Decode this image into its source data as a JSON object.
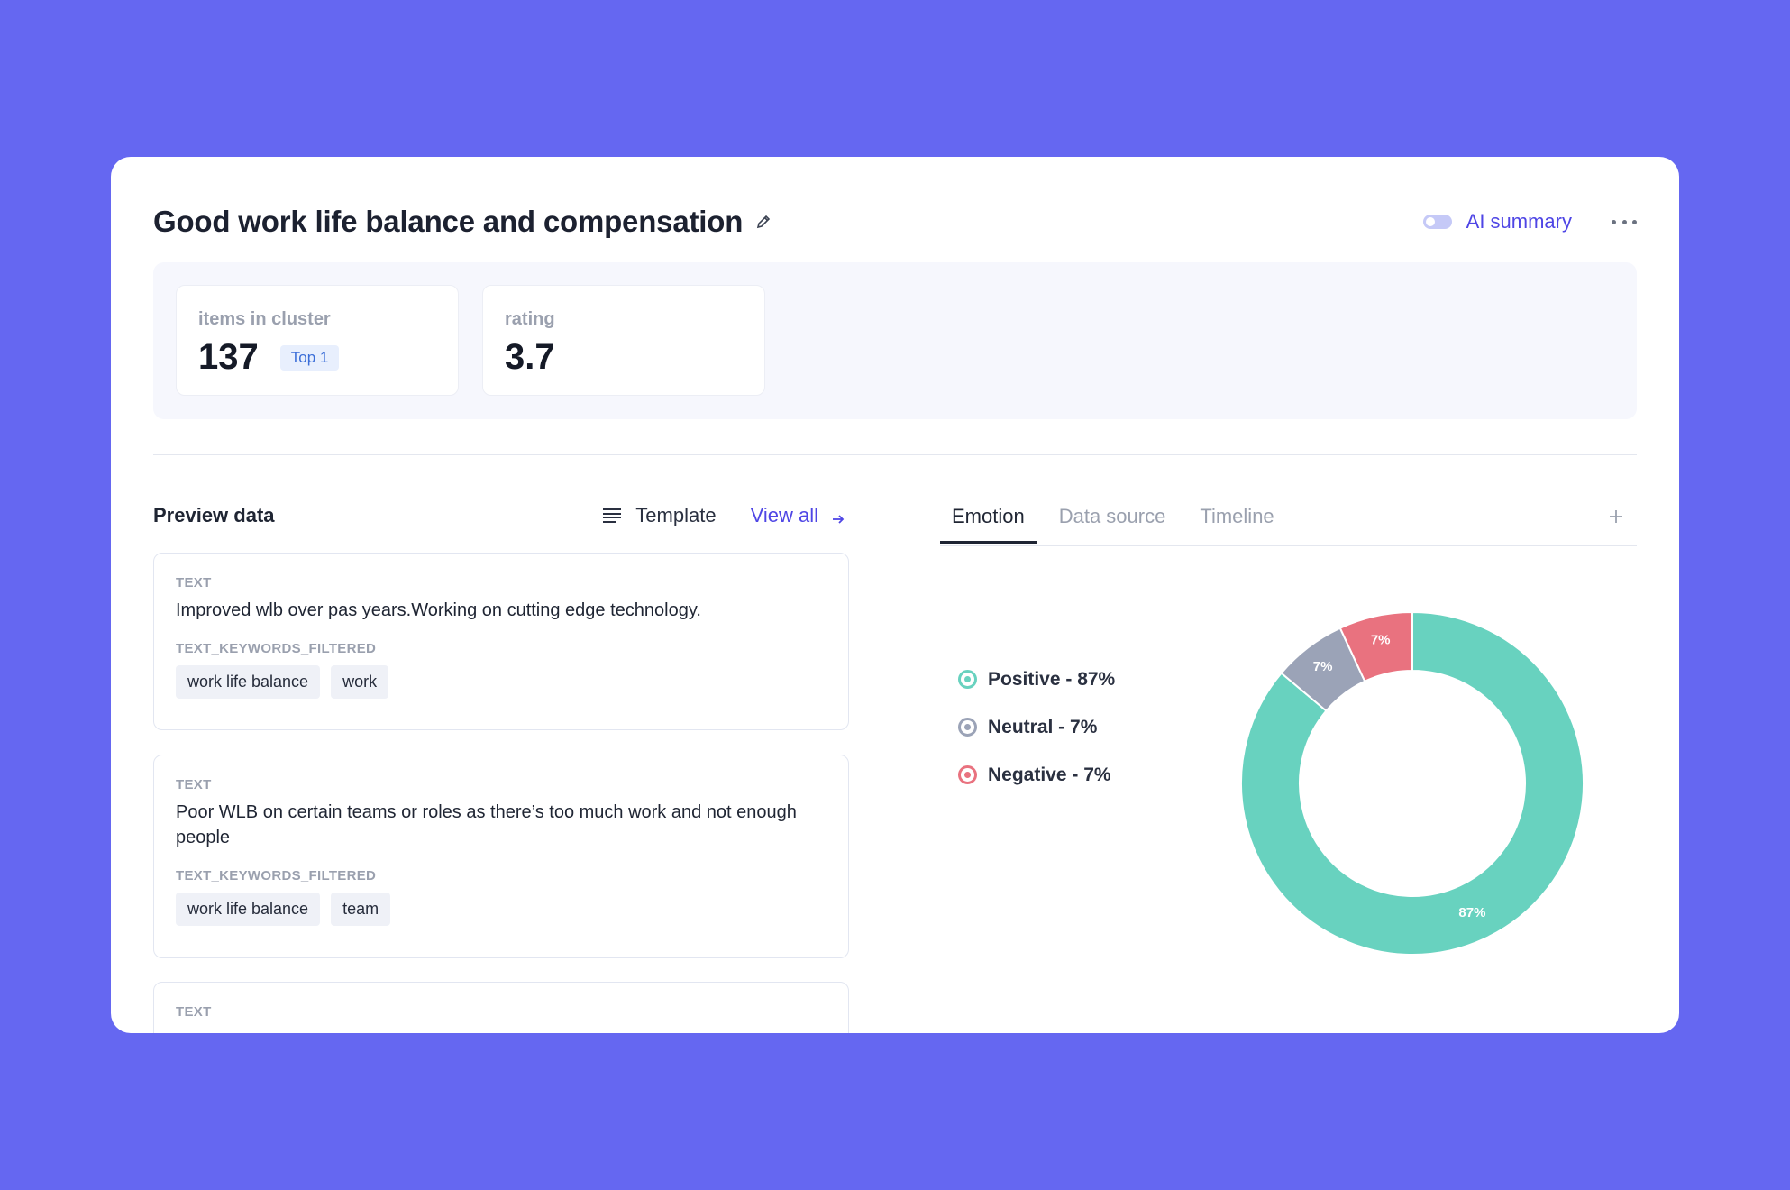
{
  "header": {
    "title": "Good work life balance and compensation",
    "ai_summary_label": "AI summary"
  },
  "stats": [
    {
      "label": "items in cluster",
      "value": "137",
      "badge": "Top 1"
    },
    {
      "label": "rating",
      "value": "3.7"
    }
  ],
  "preview": {
    "title": "Preview data",
    "template_label": "Template",
    "view_all_label": "View all",
    "items": [
      {
        "text_label": "TEXT",
        "text": "Improved wlb over pas years.Working on cutting edge technology.",
        "keywords_label": "TEXT_KEYWORDS_FILTERED",
        "tags": [
          "work life balance",
          "work"
        ]
      },
      {
        "text_label": "TEXT",
        "text": "Poor WLB on certain teams or roles as there’s too much work and not enough people",
        "keywords_label": "TEXT_KEYWORDS_FILTERED",
        "tags": [
          "work life balance",
          "team"
        ]
      },
      {
        "text_label": "TEXT"
      }
    ]
  },
  "tabs": [
    {
      "label": "Emotion",
      "active": true
    },
    {
      "label": "Data source",
      "active": false
    },
    {
      "label": "Timeline",
      "active": false
    }
  ],
  "colors": {
    "accent": "#4f46e5",
    "positive": "#68d2bf",
    "neutral": "#9ba3b7",
    "negative": "#e9727f"
  },
  "chart_data": {
    "type": "pie",
    "categories": [
      "Positive",
      "Neutral",
      "Negative"
    ],
    "values": [
      87,
      7,
      7
    ],
    "legend": [
      "Positive - 87%",
      "Neutral - 7%",
      "Negative - 7%"
    ],
    "data_labels": [
      "87%",
      "7%",
      "7%"
    ],
    "legend_position": "left"
  }
}
